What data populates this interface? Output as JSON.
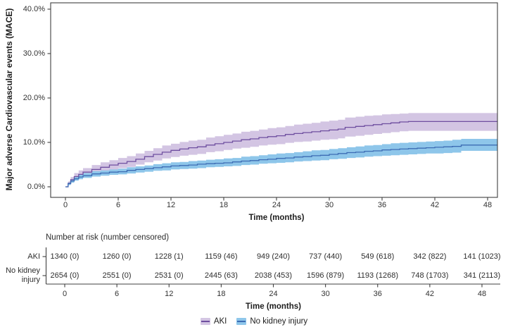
{
  "chart_data": {
    "type": "line",
    "subtype": "kaplan-meier-cumulative-incidence-with-ci-bands",
    "title": "",
    "ylabel": "Major adverse Cardiovascular events (MACE)",
    "xlabel": "Time (months)",
    "ylim": [
      0,
      40
    ],
    "xlim": [
      0,
      48
    ],
    "grid": false,
    "legend_position": "bottom",
    "yticks": [
      {
        "value": 0,
        "label": "0.0%"
      },
      {
        "value": 10,
        "label": "10.0%"
      },
      {
        "value": 20,
        "label": "20.0%"
      },
      {
        "value": 30,
        "label": "30.0%"
      },
      {
        "value": 40,
        "label": "40.0%"
      }
    ],
    "xticks": [
      0,
      6,
      12,
      18,
      24,
      30,
      36,
      42,
      48
    ],
    "series": [
      {
        "name": "AKI",
        "line_color": "#6f4fa0",
        "band_color": "#d3c5e3",
        "points_format": [
          "month",
          "estimate_pct",
          "ci_lower_pct",
          "ci_upper_pct"
        ],
        "points": [
          [
            0,
            0,
            0,
            0
          ],
          [
            0.3,
            0.8,
            0.4,
            1.2
          ],
          [
            0.6,
            1.6,
            1.0,
            2.2
          ],
          [
            1,
            2.3,
            1.6,
            3.1
          ],
          [
            1.5,
            2.8,
            2.0,
            3.7
          ],
          [
            2,
            3.3,
            2.4,
            4.2
          ],
          [
            3,
            3.9,
            2.9,
            4.9
          ],
          [
            4,
            4.4,
            3.4,
            5.5
          ],
          [
            5,
            4.9,
            3.8,
            6.0
          ],
          [
            6,
            5.3,
            4.2,
            6.5
          ],
          [
            7,
            5.7,
            4.5,
            6.9
          ],
          [
            8,
            6.2,
            5.0,
            7.5
          ],
          [
            9,
            6.8,
            5.5,
            8.1
          ],
          [
            10,
            7.3,
            5.9,
            8.7
          ],
          [
            11,
            7.8,
            6.4,
            9.3
          ],
          [
            12,
            8.2,
            6.7,
            9.7
          ],
          [
            13,
            8.5,
            7.0,
            10.1
          ],
          [
            14,
            8.8,
            7.2,
            10.4
          ],
          [
            15,
            9.0,
            7.4,
            10.6
          ],
          [
            16,
            9.4,
            7.8,
            11.1
          ],
          [
            17,
            9.7,
            8.0,
            11.4
          ],
          [
            18,
            10.0,
            8.3,
            11.7
          ],
          [
            19,
            10.3,
            8.6,
            12.0
          ],
          [
            20,
            10.6,
            8.8,
            12.4
          ],
          [
            21,
            10.8,
            9.0,
            12.6
          ],
          [
            22,
            11.1,
            9.3,
            12.9
          ],
          [
            23,
            11.3,
            9.5,
            13.2
          ],
          [
            24,
            11.5,
            9.6,
            13.4
          ],
          [
            25,
            11.8,
            9.9,
            13.7
          ],
          [
            26,
            12.0,
            10.1,
            14.0
          ],
          [
            27,
            12.2,
            10.2,
            14.2
          ],
          [
            28,
            12.4,
            10.4,
            14.4
          ],
          [
            29,
            12.6,
            10.6,
            14.7
          ],
          [
            30,
            12.8,
            10.7,
            14.9
          ],
          [
            31,
            13.0,
            10.9,
            15.1
          ],
          [
            31.8,
            13.4,
            11.3,
            15.6
          ],
          [
            33,
            13.6,
            11.5,
            15.8
          ],
          [
            34,
            13.8,
            11.7,
            16.0
          ],
          [
            35,
            14.0,
            11.9,
            16.1
          ],
          [
            36,
            14.2,
            12.1,
            16.3
          ],
          [
            37,
            14.4,
            12.3,
            16.4
          ],
          [
            38,
            14.6,
            12.5,
            16.5
          ],
          [
            39,
            14.7,
            12.6,
            16.6
          ],
          [
            49.1,
            14.7,
            12.6,
            16.6
          ]
        ]
      },
      {
        "name": "No kidney injury",
        "line_color": "#3d6cb4",
        "band_color": "#8ec6ea",
        "points_format": [
          "month",
          "estimate_pct",
          "ci_lower_pct",
          "ci_upper_pct"
        ],
        "points": [
          [
            0,
            0,
            0,
            0
          ],
          [
            0.3,
            0.7,
            0.4,
            1.0
          ],
          [
            0.6,
            1.3,
            0.9,
            1.7
          ],
          [
            1,
            1.8,
            1.4,
            2.3
          ],
          [
            1.5,
            2.2,
            1.7,
            2.7
          ],
          [
            2,
            2.5,
            2.0,
            3.1
          ],
          [
            3,
            2.9,
            2.3,
            3.5
          ],
          [
            4,
            3.1,
            2.5,
            3.7
          ],
          [
            5,
            3.3,
            2.7,
            3.9
          ],
          [
            6,
            3.4,
            2.8,
            4.1
          ],
          [
            7,
            3.7,
            3.0,
            4.4
          ],
          [
            8,
            3.9,
            3.2,
            4.6
          ],
          [
            9,
            4.1,
            3.4,
            4.8
          ],
          [
            10,
            4.3,
            3.6,
            5.1
          ],
          [
            11,
            4.5,
            3.7,
            5.3
          ],
          [
            12,
            4.7,
            3.9,
            5.5
          ],
          [
            13,
            4.8,
            4.0,
            5.6
          ],
          [
            14,
            4.9,
            4.1,
            5.8
          ],
          [
            15,
            5.1,
            4.2,
            5.9
          ],
          [
            16,
            5.2,
            4.4,
            6.1
          ],
          [
            17,
            5.3,
            4.5,
            6.2
          ],
          [
            18,
            5.4,
            4.6,
            6.4
          ],
          [
            19,
            5.6,
            4.7,
            6.5
          ],
          [
            20,
            5.8,
            4.9,
            6.8
          ],
          [
            21,
            5.9,
            5.0,
            6.9
          ],
          [
            22,
            6.1,
            5.2,
            7.1
          ],
          [
            23,
            6.2,
            5.3,
            7.3
          ],
          [
            24,
            6.4,
            5.4,
            7.5
          ],
          [
            25,
            6.5,
            5.5,
            7.6
          ],
          [
            26,
            6.7,
            5.7,
            7.8
          ],
          [
            27,
            6.8,
            5.8,
            8.0
          ],
          [
            28,
            7.0,
            5.9,
            8.2
          ],
          [
            29,
            7.1,
            6.0,
            8.3
          ],
          [
            30,
            7.3,
            6.2,
            8.5
          ],
          [
            31,
            7.5,
            6.3,
            8.7
          ],
          [
            32,
            7.7,
            6.5,
            8.9
          ],
          [
            33,
            7.8,
            6.6,
            9.1
          ],
          [
            34,
            8.0,
            6.8,
            9.3
          ],
          [
            35,
            8.1,
            6.9,
            9.4
          ],
          [
            36,
            8.3,
            7.0,
            9.6
          ],
          [
            37,
            8.4,
            7.1,
            9.8
          ],
          [
            38,
            8.5,
            7.2,
            9.9
          ],
          [
            39,
            8.6,
            7.3,
            10.0
          ],
          [
            40,
            8.7,
            7.4,
            10.1
          ],
          [
            41,
            8.8,
            7.5,
            10.2
          ],
          [
            42,
            8.9,
            7.5,
            10.3
          ],
          [
            43,
            9.0,
            7.6,
            10.4
          ],
          [
            44,
            9.1,
            7.7,
            10.6
          ],
          [
            45,
            9.4,
            8.1,
            10.8
          ],
          [
            49.1,
            9.4,
            8.1,
            10.8
          ]
        ]
      }
    ]
  },
  "risk_table": {
    "header": "Number at risk (number censored)",
    "axis_label": "Time (months)",
    "ticks": [
      0,
      6,
      12,
      18,
      24,
      30,
      36,
      42,
      48
    ],
    "rows": [
      {
        "label": "AKI",
        "values": [
          "1340 (0)",
          "1260 (0)",
          "1228 (1)",
          "1159 (46)",
          "949 (240)",
          "737 (440)",
          "549 (618)",
          "342 (822)",
          "141 (1023)"
        ]
      },
      {
        "label": "No kidney injury",
        "values": [
          "2654 (0)",
          "2551 (0)",
          "2531 (0)",
          "2445 (63)",
          "2038 (453)",
          "1596 (879)",
          "1193 (1268)",
          "748 (1703)",
          "341 (2113)"
        ]
      }
    ]
  },
  "legend": {
    "items": [
      {
        "label": "AKI",
        "line_color": "#6f4fa0",
        "band_color": "#d3c5e3"
      },
      {
        "label": "No kidney injury",
        "line_color": "#3d6cb4",
        "band_color": "#8ec6ea"
      }
    ]
  },
  "colors": {
    "axis": "#3f3f3f",
    "text": "#2e2e2e"
  }
}
